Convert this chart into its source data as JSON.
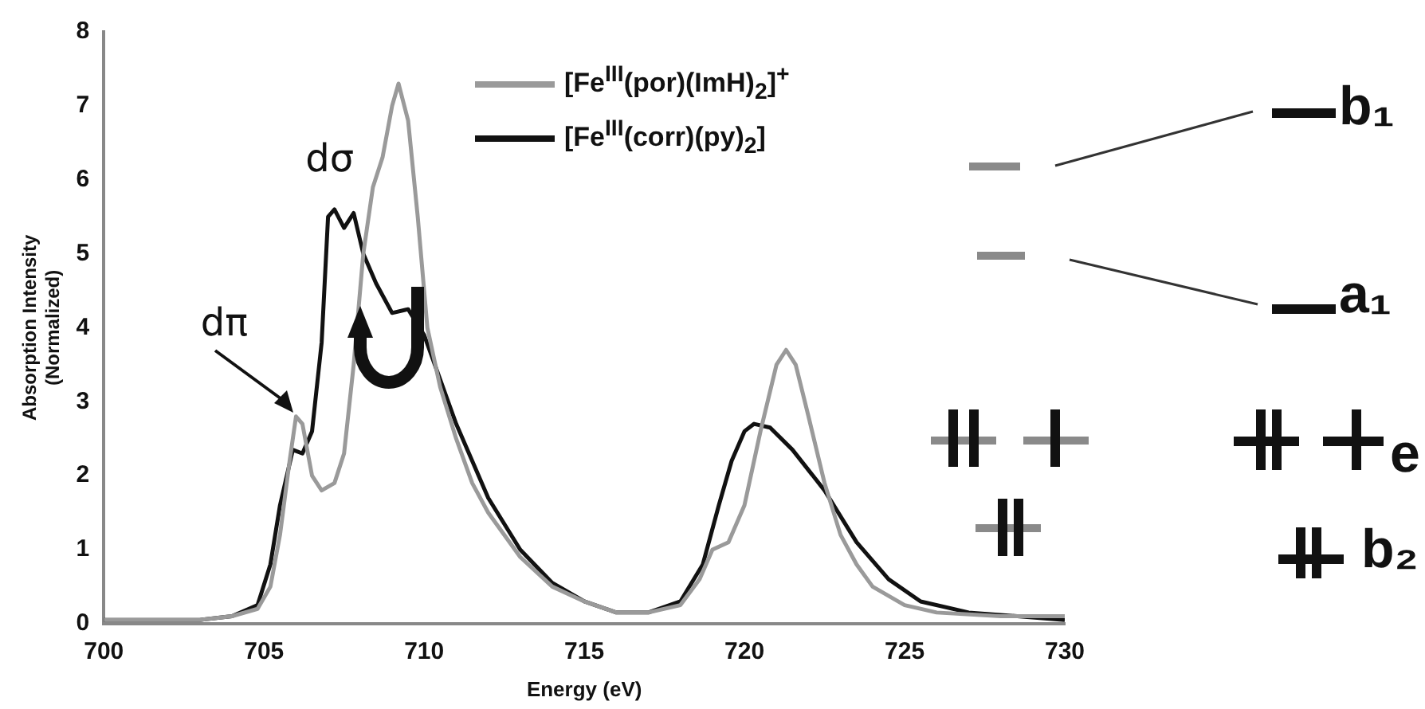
{
  "chart_data": {
    "type": "line",
    "xlabel": "Energy (eV)",
    "ylabel": "Absorption Intensity\n(Normalized)",
    "xlim": [
      700,
      730
    ],
    "xticks": [
      700,
      705,
      710,
      715,
      720,
      725,
      730
    ],
    "ylim": [
      0,
      8
    ],
    "yticks": [
      0,
      1,
      2,
      3,
      4,
      5,
      6,
      7,
      8
    ],
    "grid": false,
    "legend": "top right",
    "marker": "none",
    "line_style": "solid",
    "series": [
      {
        "name": "[Fe$^{III}$(por)(ImH)$_{2}$]$^{+}$",
        "color": "#9a9a9a",
        "x": [
          700,
          703,
          704,
          704.8,
          705.2,
          705.5,
          705.8,
          706,
          706.2,
          706.5,
          706.8,
          707.2,
          707.5,
          707.8,
          708.1,
          708.4,
          708.7,
          709,
          709.2,
          709.5,
          709.8,
          710.1,
          710.5,
          711,
          711.5,
          712,
          713,
          714,
          715,
          716,
          717,
          718,
          718.6,
          719,
          719.5,
          720,
          720.5,
          721,
          721.3,
          721.6,
          722,
          722.5,
          723,
          723.5,
          724,
          725,
          726,
          728,
          730
        ],
        "values": [
          0.05,
          0.05,
          0.1,
          0.2,
          0.5,
          1.2,
          2.2,
          2.8,
          2.7,
          2.0,
          1.8,
          1.9,
          2.3,
          3.5,
          5.0,
          5.9,
          6.3,
          7.0,
          7.3,
          6.8,
          5.5,
          4.0,
          3.2,
          2.5,
          1.9,
          1.5,
          0.9,
          0.5,
          0.3,
          0.15,
          0.15,
          0.25,
          0.6,
          1.0,
          1.1,
          1.6,
          2.6,
          3.5,
          3.7,
          3.5,
          2.8,
          1.9,
          1.2,
          0.8,
          0.5,
          0.25,
          0.15,
          0.1,
          0.1
        ]
      },
      {
        "name": "[Fe$^{III}$(corr)(py)$_{2}$]",
        "color": "#111111",
        "x": [
          700,
          703,
          704,
          704.8,
          705.2,
          705.5,
          705.9,
          706.2,
          706.5,
          706.8,
          707,
          707.2,
          707.5,
          707.8,
          708.1,
          708.5,
          709,
          709.5,
          710,
          710.5,
          711,
          711.5,
          712,
          713,
          714,
          715,
          716,
          717,
          718,
          718.7,
          719.2,
          719.6,
          720,
          720.3,
          720.8,
          721.5,
          722.5,
          723.5,
          724.5,
          725.5,
          727,
          730
        ],
        "values": [
          0.05,
          0.05,
          0.1,
          0.25,
          0.8,
          1.6,
          2.35,
          2.3,
          2.6,
          3.8,
          5.5,
          5.6,
          5.35,
          5.55,
          5.0,
          4.6,
          4.2,
          4.25,
          3.9,
          3.3,
          2.7,
          2.2,
          1.7,
          1.0,
          0.55,
          0.3,
          0.15,
          0.15,
          0.3,
          0.8,
          1.6,
          2.2,
          2.6,
          2.7,
          2.65,
          2.35,
          1.8,
          1.1,
          0.6,
          0.3,
          0.15,
          0.05
        ]
      }
    ],
    "annotations": [
      {
        "text": "dπ",
        "x": 706,
        "y": 2.8
      },
      {
        "text": "dσ",
        "x": 707.3,
        "y": 5.6
      },
      "b₁",
      "a₁",
      "e",
      "b₂"
    ]
  }
}
